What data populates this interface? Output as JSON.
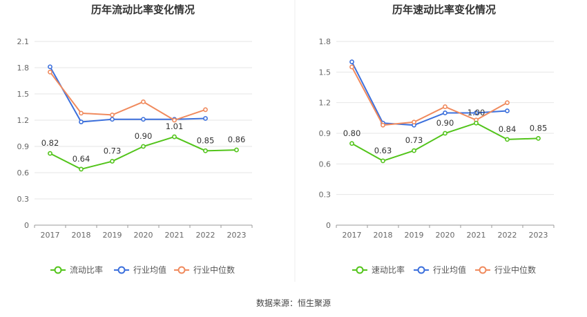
{
  "chart_data": [
    {
      "type": "line",
      "title": "历年流动比率变化情况",
      "categories": [
        "2017",
        "2018",
        "2019",
        "2020",
        "2021",
        "2022",
        "2023"
      ],
      "yticks": [
        "0",
        "0.3",
        "0.6",
        "0.9",
        "1.2",
        "1.5",
        "1.8",
        "2.1"
      ],
      "ylim": [
        0,
        2.1
      ],
      "series": [
        {
          "name": "流动比率",
          "color": "#52c41a",
          "values": [
            0.82,
            0.64,
            0.73,
            0.9,
            1.01,
            0.85,
            0.86
          ],
          "labels": [
            "0.82",
            "0.64",
            "0.73",
            "0.90",
            "1.01",
            "0.85",
            "0.86"
          ]
        },
        {
          "name": "行业均值",
          "color": "#3b6fdc",
          "values": [
            1.81,
            1.18,
            1.21,
            1.21,
            1.21,
            1.22,
            null
          ]
        },
        {
          "name": "行业中位数",
          "color": "#f08a5d",
          "values": [
            1.75,
            1.28,
            1.26,
            1.41,
            1.2,
            1.32,
            null
          ]
        }
      ]
    },
    {
      "type": "line",
      "title": "历年速动比率变化情况",
      "categories": [
        "2017",
        "2018",
        "2019",
        "2020",
        "2021",
        "2022",
        "2023"
      ],
      "yticks": [
        "0",
        "0.3",
        "0.6",
        "0.9",
        "1.2",
        "1.5",
        "1.8"
      ],
      "ylim": [
        0,
        1.8
      ],
      "series": [
        {
          "name": "速动比率",
          "color": "#52c41a",
          "values": [
            0.8,
            0.63,
            0.73,
            0.9,
            1.0,
            0.84,
            0.85
          ],
          "labels": [
            "0.80",
            "0.63",
            "0.73",
            "0.90",
            "1.00",
            "0.84",
            "0.85"
          ]
        },
        {
          "name": "行业均值",
          "color": "#3b6fdc",
          "values": [
            1.6,
            1.0,
            0.98,
            1.1,
            1.1,
            1.12,
            null
          ]
        },
        {
          "name": "行业中位数",
          "color": "#f08a5d",
          "values": [
            1.55,
            0.98,
            1.01,
            1.16,
            1.03,
            1.2,
            null
          ]
        }
      ]
    }
  ],
  "source": "数据来源：恒生聚源"
}
